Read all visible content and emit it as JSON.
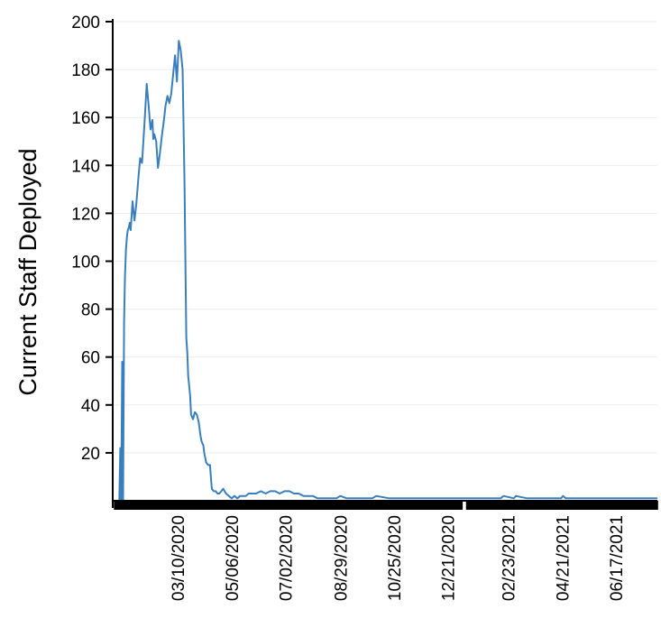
{
  "chart_data": {
    "type": "line",
    "title": "",
    "xlabel": "",
    "ylabel": "Current Staff Deployed",
    "ylim": [
      0,
      200
    ],
    "xlim": [
      "2020-01-01",
      "2021-07-31"
    ],
    "grid": "horizontal",
    "color": "#3a7fbd",
    "y_ticks": [
      20,
      40,
      60,
      80,
      100,
      120,
      140,
      160,
      180,
      200
    ],
    "x_tick_labels": [
      {
        "date": "2020-03-10",
        "label": "03/10/2020"
      },
      {
        "date": "2020-05-06",
        "label": "05/06/2020"
      },
      {
        "date": "2020-07-02",
        "label": "07/02/2020"
      },
      {
        "date": "2020-08-29",
        "label": "08/29/2020"
      },
      {
        "date": "2020-10-25",
        "label": "10/25/2020"
      },
      {
        "date": "2020-12-21",
        "label": "12/21/2020"
      },
      {
        "date": "2021-02-23",
        "label": "02/23/2021"
      },
      {
        "date": "2021-04-21",
        "label": "04/21/2021"
      },
      {
        "date": "2021-06-17",
        "label": "06/17/2021"
      }
    ],
    "series": [
      {
        "x": [
          "2020-01-08",
          "2020-01-09",
          "2020-01-10",
          "2020-01-11",
          "2020-01-12",
          "2020-01-13",
          "2020-01-14",
          "2020-01-15",
          "2020-01-16",
          "2020-01-17",
          "2020-01-18",
          "2020-01-19",
          "2020-01-20",
          "2020-01-22",
          "2020-01-24",
          "2020-01-26",
          "2020-01-28",
          "2020-01-30",
          "2020-02-01",
          "2020-02-02",
          "2020-02-04",
          "2020-02-06",
          "2020-02-08",
          "2020-02-10",
          "2020-02-12",
          "2020-02-13",
          "2020-02-14",
          "2020-02-16",
          "2020-02-18",
          "2020-02-20",
          "2020-02-22",
          "2020-02-24",
          "2020-02-26",
          "2020-02-28",
          "2020-03-01",
          "2020-03-03",
          "2020-03-05",
          "2020-03-07",
          "2020-03-09",
          "2020-03-11",
          "2020-03-13",
          "2020-03-15",
          "2020-03-17",
          "2020-03-18",
          "2020-03-19",
          "2020-03-20",
          "2020-03-21",
          "2020-03-22",
          "2020-03-23",
          "2020-03-24",
          "2020-03-26",
          "2020-03-28",
          "2020-03-30",
          "2020-04-01",
          "2020-04-03",
          "2020-04-04",
          "2020-04-06",
          "2020-04-07",
          "2020-04-09",
          "2020-04-11",
          "2020-04-13",
          "2020-04-15",
          "2020-04-17",
          "2020-04-19",
          "2020-04-21",
          "2020-04-23",
          "2020-04-25",
          "2020-04-27",
          "2020-04-30",
          "2020-05-03",
          "2020-05-06",
          "2020-05-09",
          "2020-05-12",
          "2020-05-15",
          "2020-05-18",
          "2020-05-21",
          "2020-05-24",
          "2020-05-27",
          "2020-06-01",
          "2020-06-06",
          "2020-06-11",
          "2020-06-16",
          "2020-06-21",
          "2020-06-26",
          "2020-07-01",
          "2020-07-06",
          "2020-07-11",
          "2020-07-16",
          "2020-07-21",
          "2020-07-26",
          "2020-07-31",
          "2020-08-05",
          "2020-08-15",
          "2020-08-25",
          "2020-08-29",
          "2020-09-05",
          "2020-09-20",
          "2020-10-02",
          "2020-10-06",
          "2020-10-20",
          "2020-11-15",
          "2020-12-15",
          "2021-01-15",
          "2021-02-15",
          "2021-02-18",
          "2021-03-01",
          "2021-03-03",
          "2021-03-15",
          "2021-04-01",
          "2021-04-20",
          "2021-04-22",
          "2021-04-25",
          "2021-05-15",
          "2021-06-15",
          "2021-07-15",
          "2021-07-31"
        ],
        "y": [
          0,
          22,
          0,
          58,
          0,
          75,
          94,
          105,
          110,
          113,
          114,
          116,
          113,
          125,
          117,
          124,
          134,
          143,
          141,
          147,
          160,
          174,
          165,
          155,
          159,
          151,
          153,
          150,
          139,
          145,
          152,
          158,
          165,
          169,
          166,
          170,
          178,
          186,
          175,
          192,
          188,
          180,
          133,
          100,
          68,
          62,
          52,
          48,
          44,
          36,
          34,
          37,
          36,
          33,
          27,
          25,
          23,
          20,
          16,
          15,
          15,
          5,
          4,
          4,
          3,
          3,
          4,
          5,
          3,
          2,
          1,
          2,
          1,
          2,
          2,
          2,
          3,
          3,
          3,
          4,
          3,
          4,
          4,
          3,
          4,
          4,
          3,
          3,
          2,
          2,
          2,
          1,
          1,
          1,
          2,
          1,
          1,
          1,
          2,
          1,
          1,
          1,
          1,
          1,
          2,
          1,
          2,
          1,
          1,
          1,
          2,
          1,
          1,
          1,
          1,
          1
        ]
      }
    ]
  }
}
